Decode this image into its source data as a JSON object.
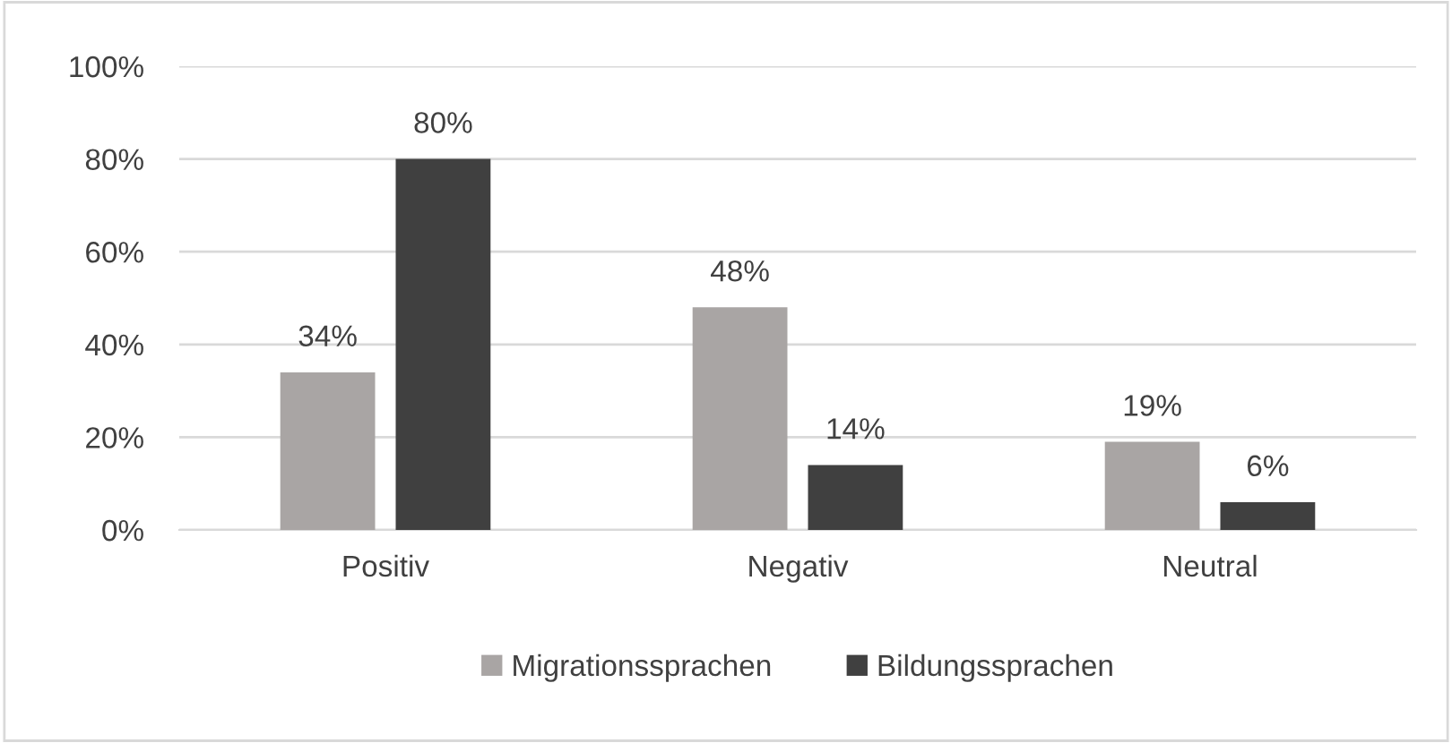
{
  "chart_data": {
    "type": "bar",
    "categories": [
      "Positiv",
      "Negativ",
      "Neutral"
    ],
    "series": [
      {
        "name": "Migrationssprachen",
        "color": "#a9a5a4",
        "values": [
          34,
          48,
          19
        ],
        "value_labels": [
          "34%",
          "48%",
          "19%"
        ]
      },
      {
        "name": "Bildungssprachen",
        "color": "#404040",
        "values": [
          80,
          14,
          6
        ],
        "value_labels": [
          "80%",
          "14%",
          "6%"
        ]
      }
    ],
    "ylim": [
      0,
      100
    ],
    "yticks": [
      {
        "value": 0,
        "label": "0%"
      },
      {
        "value": 20,
        "label": "20%"
      },
      {
        "value": 40,
        "label": "40%"
      },
      {
        "value": 60,
        "label": "60%"
      },
      {
        "value": 80,
        "label": "80%"
      },
      {
        "value": 100,
        "label": "100%"
      }
    ],
    "grid": "y",
    "legend": "bottom"
  }
}
